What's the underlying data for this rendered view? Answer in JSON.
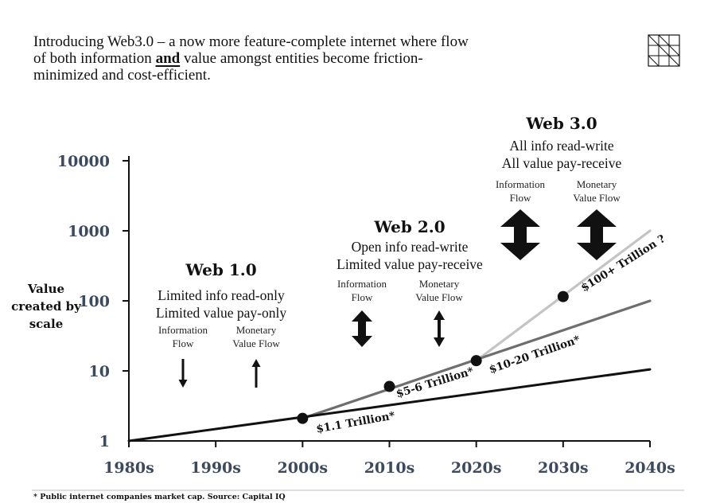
{
  "intro": {
    "lines": [
      "Introducing Web3.0 – a now more feature-complete internet where flow",
      "of both information ",
      " value amongst entities become friction-",
      "minimized and cost-efficient."
    ],
    "highlight": "and"
  },
  "footnote": "* Public internet companies market cap. Source: Capital IQ",
  "chart_data": {
    "type": "line",
    "yscale": "log",
    "ylabel_lines": [
      "Value",
      "created by",
      "scale"
    ],
    "x_ticks": [
      "1980s",
      "1990s",
      "2000s",
      "2010s",
      "2020s",
      "2030s",
      "2040s"
    ],
    "y_ticks": [
      "1",
      "10",
      "100",
      "1000",
      "10000"
    ],
    "xlim": [
      1980,
      2040
    ],
    "ylim": [
      1,
      10000
    ],
    "series": [
      {
        "id": "web1",
        "color": "#111111",
        "points": [
          [
            1980,
            1
          ],
          [
            2040,
            10.5
          ]
        ]
      },
      {
        "id": "web2",
        "color": "#6e6e6e",
        "points": [
          [
            2000,
            2.1
          ],
          [
            2040,
            100
          ]
        ]
      },
      {
        "id": "web3",
        "color": "#c4c4c4",
        "points": [
          [
            2020,
            14
          ],
          [
            2040,
            1000
          ]
        ]
      }
    ],
    "markers": [
      {
        "x": 2000,
        "y": 2.1,
        "label": "$1.1 Trillion*"
      },
      {
        "x": 2010,
        "y": 6,
        "label": "$5-6 Trillion*"
      },
      {
        "x": 2020,
        "y": 14,
        "label": "$10-20 Trillion*"
      },
      {
        "x": 2030,
        "y": 115,
        "label": "$100+ Trillion ?"
      }
    ],
    "eras": [
      {
        "id": "web1",
        "title": "Web 1.0",
        "lines": [
          "Limited info read-only",
          "Limited value pay-only"
        ],
        "flows": [
          {
            "label": [
              "Information",
              "Flow"
            ],
            "arrow": "down"
          },
          {
            "label": [
              "Monetary",
              "Value Flow"
            ],
            "arrow": "up"
          }
        ]
      },
      {
        "id": "web2",
        "title": "Web 2.0",
        "lines": [
          "Open info read-write",
          "Limited value pay-receive"
        ],
        "flows": [
          {
            "label": [
              "Information",
              "Flow"
            ],
            "arrow": "both-bold"
          },
          {
            "label": [
              "Monetary",
              "Value Flow"
            ],
            "arrow": "both-thin"
          }
        ]
      },
      {
        "id": "web3",
        "title": "Web 3.0",
        "lines": [
          "All info read-write",
          "All value pay-receive"
        ],
        "flows": [
          {
            "label": [
              "Information",
              "Flow"
            ],
            "arrow": "both-big"
          },
          {
            "label": [
              "Monetary",
              "Value Flow"
            ],
            "arrow": "both-big"
          }
        ]
      }
    ]
  },
  "logo": {
    "icon": "grid-logo-icon"
  }
}
